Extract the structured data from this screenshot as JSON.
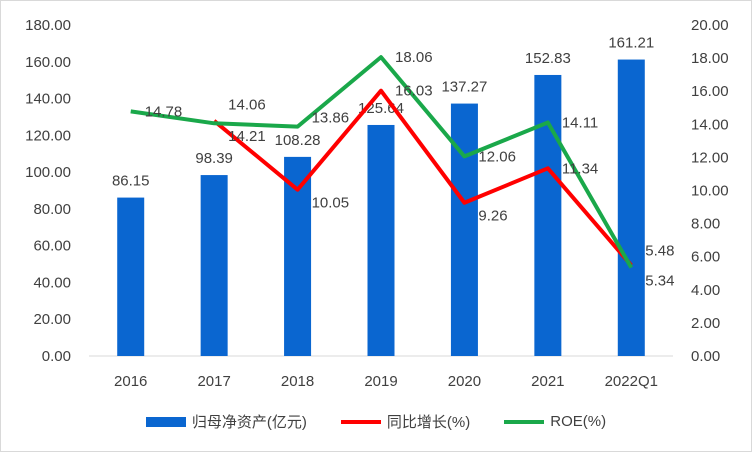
{
  "chart_data": {
    "type": "bar",
    "categories": [
      "2016",
      "2017",
      "2018",
      "2019",
      "2020",
      "2021",
      "2022Q1"
    ],
    "series": [
      {
        "name": "归母净资产(亿元)",
        "type": "bar",
        "axis": "left",
        "color": "#0a66d0",
        "values": [
          86.15,
          98.39,
          108.28,
          125.64,
          137.27,
          152.83,
          161.21
        ],
        "labels": [
          "86.15",
          "98.39",
          "108.28",
          "125.64",
          "137.27",
          "152.83",
          "161.21"
        ]
      },
      {
        "name": "同比增长(%)",
        "type": "line",
        "axis": "right",
        "color": "#ff0000",
        "values": [
          null,
          14.21,
          10.05,
          16.03,
          9.26,
          11.34,
          5.48
        ],
        "labels": [
          "",
          "14.21",
          "10.05",
          "16.03",
          "9.26",
          "11.34",
          "5.48"
        ]
      },
      {
        "name": "ROE(%)",
        "type": "line",
        "axis": "right",
        "color": "#1aa84a",
        "values": [
          14.78,
          14.06,
          13.86,
          18.06,
          12.06,
          14.11,
          5.34
        ],
        "labels": [
          "14.78",
          "14.06",
          "13.86",
          "18.06",
          "12.06",
          "14.11",
          "5.34"
        ]
      }
    ],
    "left_axis": {
      "range": [
        0,
        180
      ],
      "ticks": [
        "0.00",
        "20.00",
        "40.00",
        "60.00",
        "80.00",
        "100.00",
        "120.00",
        "140.00",
        "160.00",
        "180.00"
      ]
    },
    "right_axis": {
      "range": [
        0,
        20
      ],
      "ticks": [
        "0.00",
        "2.00",
        "4.00",
        "6.00",
        "8.00",
        "10.00",
        "12.00",
        "14.00",
        "16.00",
        "18.00",
        "20.00"
      ]
    },
    "legend_position": "bottom",
    "grid": false
  }
}
